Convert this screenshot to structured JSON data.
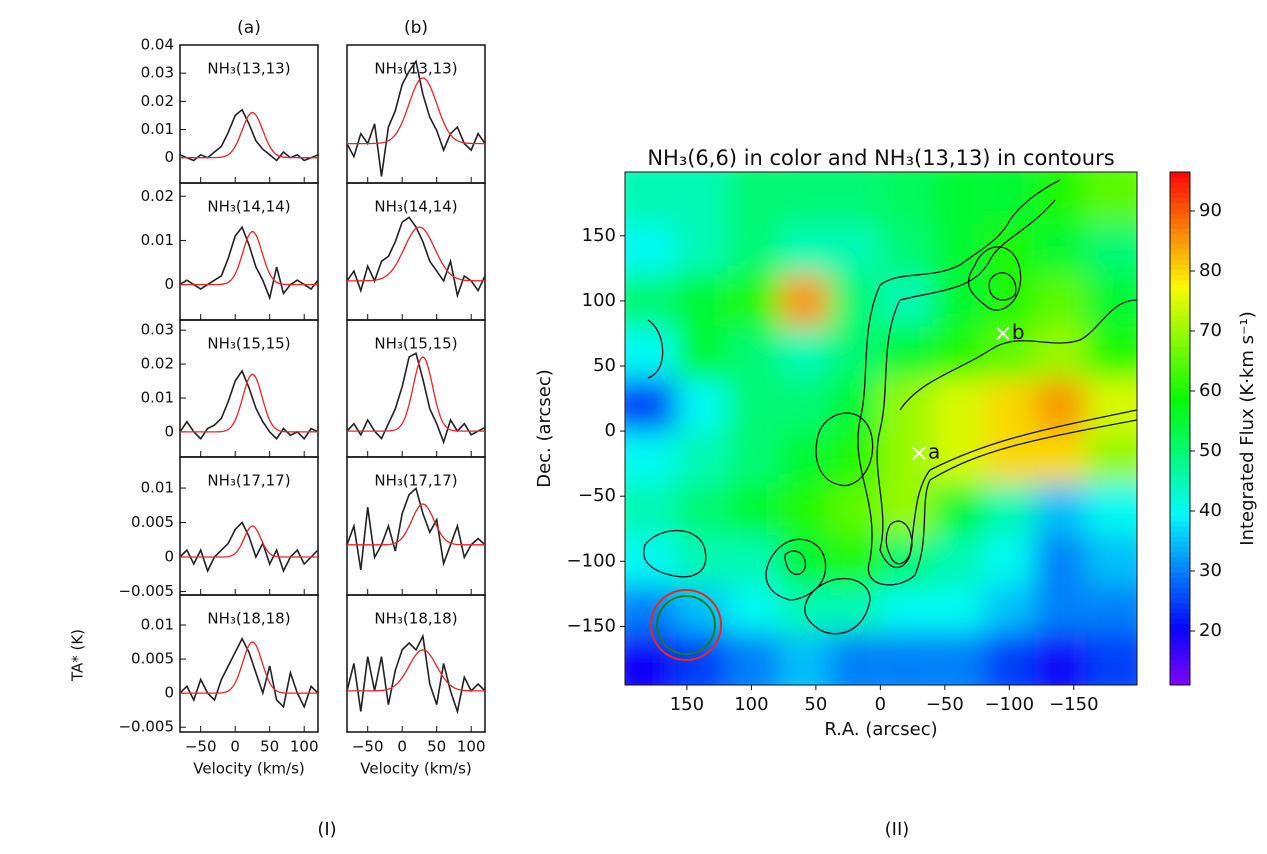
{
  "chart_data": [
    {
      "type": "spectra",
      "x": [
        -80,
        -70,
        -60,
        -50,
        -40,
        -30,
        -20,
        -10,
        0,
        10,
        20,
        30,
        40,
        50,
        60,
        70,
        80,
        90,
        100,
        110,
        120
      ],
      "xlim": [
        -80,
        120
      ],
      "xticks": [
        {
          "value": -50,
          "label": "−50"
        },
        0,
        50,
        100
      ],
      "xlabel": "Velocity (km/s)",
      "ylabel": "TA* (K)",
      "color": "#222222",
      "fit_color": "#e8262a",
      "columns": [
        {
          "title": "(a)",
          "panels": [
            {
              "label": "NH₃(13,13)",
              "ylim": [
                -0.009,
                0.04
              ],
              "yticks": [
                0,
                0.01,
                0.02,
                0.03,
                0.04
              ],
              "values": [
                0.001,
                0,
                -0.001,
                0.001,
                0,
                0.002,
                0.004,
                0.009,
                0.015,
                0.017,
                0.012,
                0.006,
                0.003,
                0.001,
                -0.001,
                0.002,
                0,
                0.001,
                -0.001,
                0,
                0.001
              ],
              "fit": {
                "amplitude": 0.016,
                "center": 25,
                "sigma": 15
              }
            },
            {
              "label": "NH₃(14,14)",
              "ylim": [
                -0.008,
                0.023
              ],
              "yticks": [
                0,
                0.01,
                0.02
              ],
              "values": [
                0,
                0.001,
                0,
                -0.001,
                0,
                0.001,
                0.002,
                0.006,
                0.011,
                0.013,
                0.009,
                0.004,
                0.001,
                -0.003,
                0.004,
                -0.002,
                0,
                0.001,
                0,
                -0.001,
                0.001
              ],
              "fit": {
                "amplitude": 0.012,
                "center": 25,
                "sigma": 14
              }
            },
            {
              "label": "NH₃(15,15)",
              "ylim": [
                -0.0074,
                0.033
              ],
              "yticks": [
                0,
                0.01,
                0.02,
                0.03
              ],
              "values": [
                0,
                0.003,
                0,
                -0.002,
                0.001,
                0.002,
                0.004,
                0.009,
                0.015,
                0.018,
                0.013,
                0.007,
                0.003,
                0,
                -0.002,
                0.001,
                -0.001,
                0,
                -0.002,
                0.001,
                0
              ],
              "fit": {
                "amplitude": 0.017,
                "center": 25,
                "sigma": 14
              }
            },
            {
              "label": "NH₃(17,17)",
              "ylim": [
                -0.0055,
                0.0145
              ],
              "yticks": [
                {
                  "value": -0.005,
                  "label": "−0.005"
                },
                0,
                0.005,
                0.01
              ],
              "values": [
                0,
                0.001,
                -0.001,
                0.001,
                -0.002,
                0,
                0.001,
                0.002,
                0.004,
                0.005,
                0.003,
                0,
                0.002,
                -0.001,
                0.001,
                -0.002,
                0,
                0.001,
                -0.001,
                0,
                0.001
              ],
              "fit": {
                "amplitude": 0.0045,
                "center": 25,
                "sigma": 12
              }
            },
            {
              "label": "NH₃(18,18)",
              "ylim": [
                -0.0057,
                0.0144
              ],
              "yticks": [
                {
                  "value": -0.005,
                  "label": "−0.005"
                },
                0,
                0.005,
                0.01
              ],
              "values": [
                0,
                0.001,
                -0.001,
                0.002,
                0,
                -0.001,
                0.002,
                0.004,
                0.006,
                0.008,
                0.006,
                0.003,
                0,
                0.004,
                -0.001,
                -0.002,
                0.003,
                0,
                -0.002,
                0.001,
                0
              ],
              "fit": {
                "amplitude": 0.0075,
                "center": 25,
                "sigma": 14
              }
            }
          ]
        },
        {
          "title": "(b)",
          "panels": [
            {
              "label": "NH₃(13,13)",
              "ylim": [
                -0.012,
                0.03
              ],
              "values": [
                0,
                -0.004,
                0.003,
                0,
                0.006,
                -0.01,
                0.005,
                0.01,
                0.018,
                0.022,
                0.025,
                0.015,
                0.008,
                0.004,
                -0.002,
                0.003,
                0.005,
                0,
                -0.002,
                0.003,
                0
              ],
              "fit": {
                "amplitude": 0.02,
                "center": 30,
                "sigma": 20
              }
            },
            {
              "label": "NH₃(14,14)",
              "ylim": [
                -0.008,
                0.02
              ],
              "values": [
                0,
                0.002,
                -0.002,
                0.003,
                0,
                0.004,
                0.005,
                0.008,
                0.012,
                0.013,
                0.011,
                0.008,
                0.004,
                0.002,
                0,
                0.004,
                -0.003,
                0.001,
                0,
                -0.002,
                0.001
              ],
              "fit": {
                "amplitude": 0.011,
                "center": 25,
                "sigma": 22
              }
            },
            {
              "label": "NH₃(15,15)",
              "ylim": [
                -0.007,
                0.03
              ],
              "values": [
                0,
                0.002,
                -0.001,
                0.003,
                0,
                -0.002,
                0.002,
                0.006,
                0.012,
                0.02,
                0.021,
                0.014,
                0.006,
                0.002,
                -0.003,
                0.003,
                0,
                0.002,
                -0.001,
                0,
                0.001
              ],
              "fit": {
                "amplitude": 0.02,
                "center": 30,
                "sigma": 14
              }
            },
            {
              "label": "NH₃(17,17)",
              "ylim": [
                -0.008,
                0.014
              ],
              "values": [
                0,
                0.003,
                -0.004,
                0.006,
                -0.002,
                0,
                0.003,
                -0.001,
                0.005,
                0.008,
                0.009,
                0.005,
                0.002,
                0.004,
                -0.003,
                0,
                0.003,
                -0.002,
                0,
                0.001,
                0
              ],
              "fit": {
                "amplitude": 0.0065,
                "center": 30,
                "sigma": 16
              }
            },
            {
              "label": "NH₃(18,18)",
              "ylim": [
                -0.006,
                0.014
              ],
              "values": [
                0,
                0.004,
                -0.003,
                0.005,
                0,
                0.005,
                -0.002,
                0.003,
                0.006,
                0.007,
                0.006,
                0.008,
                0.001,
                -0.002,
                0.004,
                0,
                -0.003,
                0.002,
                0,
                0.001,
                0
              ],
              "fit": {
                "amplitude": 0.006,
                "center": 30,
                "sigma": 20
              }
            }
          ]
        }
      ]
    },
    {
      "type": "heatmap",
      "title": "NH₃(6,6) in color and NH₃(13,13) in contours",
      "xlabel": "R.A. (arcsec)",
      "ylabel": "Dec. (arcsec)",
      "colorbar_label": "Integrated Flux (K·km s⁻¹)",
      "xlim": [
        198,
        -199
      ],
      "ylim": [
        -195,
        199
      ],
      "xticks": [
        150,
        100,
        50,
        0,
        {
          "value": -50,
          "label": "−50"
        },
        {
          "value": -100,
          "label": "−100"
        },
        {
          "value": -150,
          "label": "−150"
        }
      ],
      "yticks": [
        150,
        100,
        50,
        0,
        {
          "value": -50,
          "label": "−50"
        },
        {
          "value": -100,
          "label": "−100"
        },
        {
          "value": -150,
          "label": "−150"
        }
      ],
      "zlim": [
        11,
        96.5
      ],
      "zticks": [
        20,
        30,
        40,
        50,
        60,
        70,
        80,
        90
      ],
      "x": [
        178,
        139,
        99,
        59,
        20,
        -20,
        -60,
        -100,
        -139,
        -179
      ],
      "y": [
        179,
        139,
        100,
        60,
        20,
        -20,
        -60,
        -100,
        -139,
        -175
      ],
      "z": [
        [
          45,
          45,
          50,
          50,
          50,
          52,
          55,
          55,
          60,
          65
        ],
        [
          40,
          45,
          50,
          45,
          45,
          50,
          55,
          60,
          55,
          50
        ],
        [
          50,
          55,
          60,
          85,
          50,
          45,
          55,
          60,
          65,
          55
        ],
        [
          40,
          55,
          50,
          45,
          50,
          55,
          60,
          65,
          70,
          60
        ],
        [
          25,
          40,
          50,
          50,
          55,
          70,
          75,
          80,
          85,
          75
        ],
        [
          40,
          45,
          50,
          55,
          60,
          70,
          75,
          80,
          80,
          70
        ],
        [
          45,
          50,
          55,
          60,
          65,
          70,
          55,
          45,
          35,
          40
        ],
        [
          40,
          45,
          45,
          55,
          60,
          50,
          45,
          40,
          30,
          35
        ],
        [
          30,
          35,
          40,
          45,
          45,
          40,
          40,
          35,
          30,
          30
        ],
        [
          20,
          25,
          30,
          35,
          30,
          30,
          30,
          25,
          20,
          25
        ]
      ],
      "markers": [
        {
          "x": -30,
          "y": -17,
          "label": "a"
        },
        {
          "x": -95,
          "y": 75,
          "label": "b"
        }
      ]
    }
  ],
  "captions": [
    "(I)",
    "(II)"
  ]
}
